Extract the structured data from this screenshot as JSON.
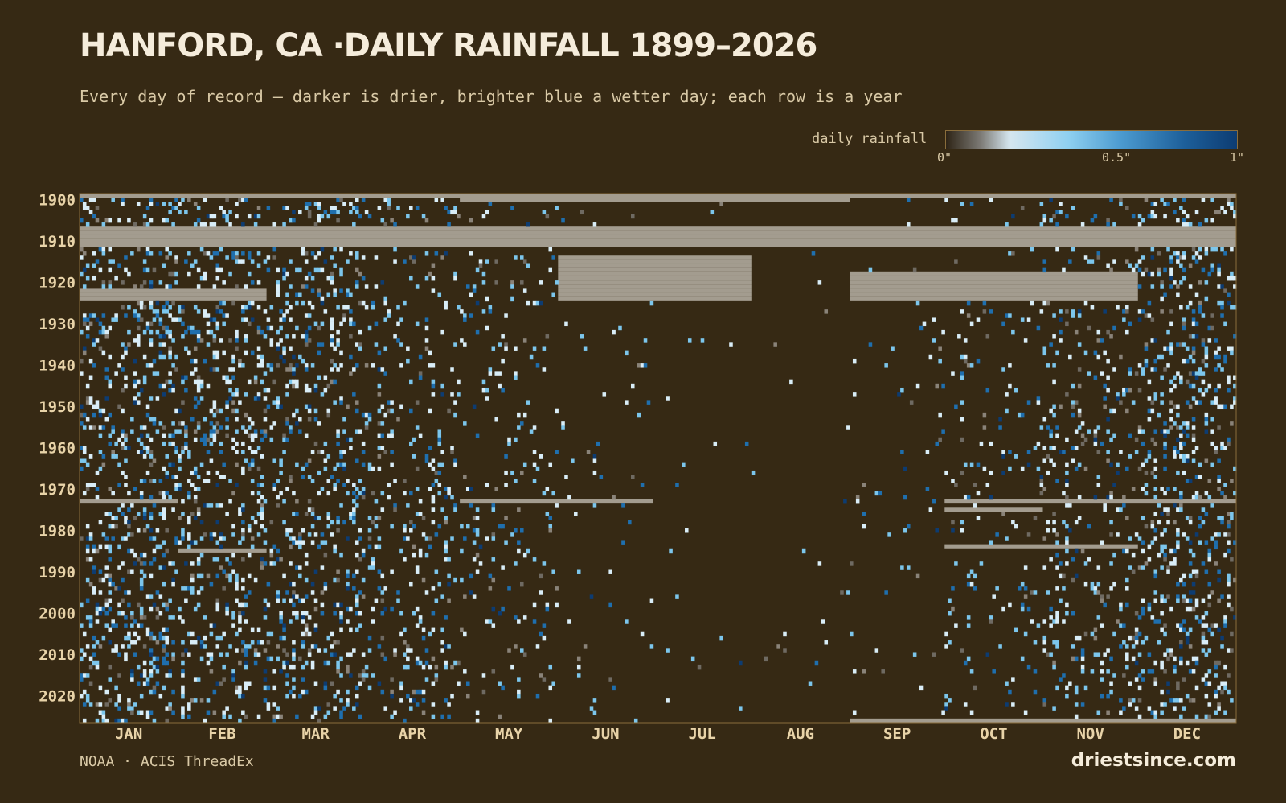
{
  "title": "HANFORD, CA ·DAILY RAINFALL 1899–2026",
  "subtitle": "Every day of record — darker is drier, brighter blue a wetter day; each row is a year",
  "legend": {
    "label": "daily rainfall",
    "ticks": [
      "0\"",
      "0.5\"",
      "1\""
    ]
  },
  "source": "NOAA · ACIS ThreadEx",
  "brand": "driestsince.com",
  "colors": {
    "background": "#362914",
    "dry": "#362914",
    "missing": "#a39c8f",
    "light": "#d9edf7",
    "mid": "#7cc6ec",
    "wet": "#1f6fae",
    "wettest": "#0d3c72",
    "text": "#f5ecdb",
    "axis_text": "#e8d3a8"
  },
  "chart_data": {
    "type": "heatmap",
    "title": "HANFORD, CA ·DAILY RAINFALL 1899–2026",
    "x_axis": {
      "labels": [
        "JAN",
        "FEB",
        "MAR",
        "APR",
        "MAY",
        "JUN",
        "JUL",
        "AUG",
        "SEP",
        "OCT",
        "NOV",
        "DEC"
      ],
      "days_per_month": [
        31,
        28,
        31,
        30,
        31,
        30,
        31,
        31,
        30,
        31,
        30,
        31
      ]
    },
    "y_axis": {
      "range": [
        1899,
        2026
      ],
      "tick_labels": [
        "1900",
        "1910",
        "1920",
        "1930",
        "1940",
        "1950",
        "1960",
        "1970",
        "1980",
        "1990",
        "2000",
        "2010",
        "2020"
      ]
    },
    "value_range": [
      0,
      1
    ],
    "value_unit": "inches",
    "missing_periods": [
      {
        "years": [
          1899,
          1899
        ],
        "months": [
          "JAN",
          "DEC"
        ]
      },
      {
        "years": [
          1900,
          1900
        ],
        "months": [
          "MAY",
          "AUG"
        ]
      },
      {
        "years": [
          1907,
          1911
        ],
        "months": [
          "JAN",
          "DEC"
        ]
      },
      {
        "years": [
          1914,
          1924
        ],
        "months": [
          "JUN",
          "JUL"
        ]
      },
      {
        "years": [
          1918,
          1924
        ],
        "months": [
          "SEP",
          "NOV"
        ]
      },
      {
        "years": [
          1922,
          1924
        ],
        "months": [
          "JAN",
          "FEB"
        ]
      },
      {
        "years": [
          1973,
          1973
        ],
        "months": [
          "JAN"
        ]
      },
      {
        "years": [
          1973,
          1973
        ],
        "months": [
          "MAY",
          "JUN"
        ]
      },
      {
        "years": [
          1973,
          1973
        ],
        "months": [
          "OCT",
          "DEC"
        ]
      },
      {
        "years": [
          1975,
          1975
        ],
        "months": [
          "OCT"
        ]
      },
      {
        "years": [
          1984,
          1984
        ],
        "months": [
          "OCT",
          "NOV"
        ]
      },
      {
        "years": [
          1985,
          1985
        ],
        "months": [
          "FEB"
        ]
      },
      {
        "years": [
          2026,
          2026
        ],
        "months": [
          "SEP",
          "DEC"
        ]
      }
    ],
    "wet_season_months": [
      "JAN",
      "FEB",
      "MAR",
      "APR",
      "NOV",
      "DEC"
    ],
    "dry_season_months": [
      "JUN",
      "JUL",
      "AUG",
      "SEP"
    ]
  }
}
